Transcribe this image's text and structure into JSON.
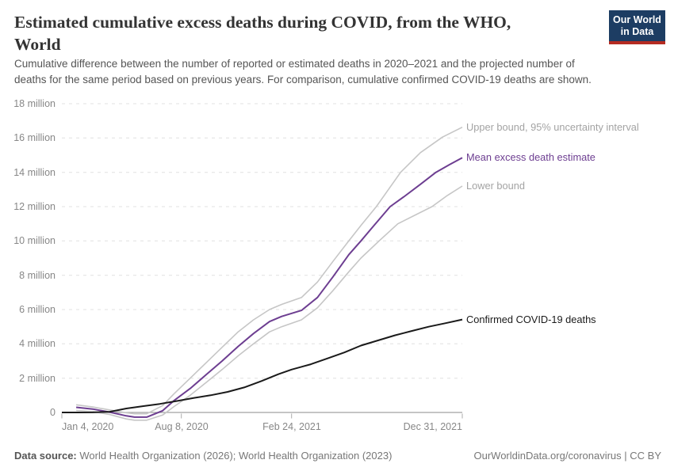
{
  "header": {
    "title_lines": [
      "Estimated cumulative excess deaths during COVID, from the WHO,",
      "World"
    ],
    "subtitle_lines": [
      "Cumulative difference between the number of reported or estimated deaths in 2020–2021 and the projected number of",
      "deaths for the same period based on previous years. For comparison, cumulative confirmed COVID-19 deaths are shown."
    ],
    "logo": {
      "line1": "Our World",
      "line2": "in Data"
    }
  },
  "footer": {
    "datasource_label": "Data source:",
    "datasource_text": " World Health Organization (2026); World Health Organization (2023)",
    "right_text": "OurWorldinData.org/coronavirus | CC BY"
  },
  "colors": {
    "mean": "#6d3e91",
    "bounds_line": "#c6c6c6",
    "bounds_label": "#a3a3a3",
    "confirmed": "#1a1a1a",
    "grid": "#e0e0e0",
    "zero_line": "#a2a2a2",
    "tick": "#ababab",
    "logo_bg": "#1d3d63",
    "logo_bar": "#b52b22"
  },
  "chart_data": {
    "type": "line",
    "title": "Estimated cumulative excess deaths during COVID, from the WHO, World",
    "x_unit": "days since 2020-01-04",
    "x_range_days": [
      0,
      727
    ],
    "ylim": [
      0,
      18
    ],
    "y_unit": "million deaths",
    "grid": "horizontal dashed",
    "legend_position": "labels at right end of each line",
    "y_ticks": [
      {
        "value": 0,
        "label": "0"
      },
      {
        "value": 2,
        "label": "2 million"
      },
      {
        "value": 4,
        "label": "4 million"
      },
      {
        "value": 6,
        "label": "6 million"
      },
      {
        "value": 8,
        "label": "8 million"
      },
      {
        "value": 10,
        "label": "10 million"
      },
      {
        "value": 12,
        "label": "12 million"
      },
      {
        "value": 14,
        "label": "14 million"
      },
      {
        "value": 16,
        "label": "16 million"
      },
      {
        "value": 18,
        "label": "18 million"
      }
    ],
    "x_ticks": [
      {
        "day": 0,
        "label": "Jan 4, 2020",
        "align": "left"
      },
      {
        "day": 217,
        "label": "Aug 8, 2020",
        "align": "center"
      },
      {
        "day": 417,
        "label": "Feb 24, 2021",
        "align": "center"
      },
      {
        "day": 727,
        "label": "Dec 31, 2021",
        "align": "right"
      }
    ],
    "series": [
      {
        "id": "upper",
        "name": "Upper bound, 95% uncertainty interval",
        "color": "#c6c6c6",
        "label_color": "#a3a3a3",
        "width": 1.6,
        "points": [
          [
            26,
            0.45
          ],
          [
            56,
            0.32
          ],
          [
            87,
            0.15
          ],
          [
            117,
            -0.02
          ],
          [
            132,
            -0.08
          ],
          [
            154,
            -0.08
          ],
          [
            183,
            0.4
          ],
          [
            204,
            1.1
          ],
          [
            233,
            2.0
          ],
          [
            262,
            2.9
          ],
          [
            291,
            3.8
          ],
          [
            320,
            4.7
          ],
          [
            348,
            5.4
          ],
          [
            377,
            6.0
          ],
          [
            399,
            6.3
          ],
          [
            435,
            6.7
          ],
          [
            464,
            7.6
          ],
          [
            492,
            8.8
          ],
          [
            521,
            10.0
          ],
          [
            543,
            10.9
          ],
          [
            571,
            12.0
          ],
          [
            615,
            14.0
          ],
          [
            651,
            15.15
          ],
          [
            691,
            16.05
          ],
          [
            727,
            16.63
          ]
        ]
      },
      {
        "id": "lower",
        "name": "Lower bound",
        "color": "#c6c6c6",
        "label_color": "#a3a3a3",
        "width": 1.6,
        "points": [
          [
            26,
            0.12
          ],
          [
            56,
            0.05
          ],
          [
            87,
            -0.12
          ],
          [
            117,
            -0.38
          ],
          [
            132,
            -0.45
          ],
          [
            154,
            -0.45
          ],
          [
            183,
            -0.15
          ],
          [
            204,
            0.35
          ],
          [
            233,
            1.0
          ],
          [
            262,
            1.75
          ],
          [
            291,
            2.5
          ],
          [
            320,
            3.3
          ],
          [
            348,
            4.0
          ],
          [
            377,
            4.7
          ],
          [
            399,
            5.0
          ],
          [
            435,
            5.4
          ],
          [
            464,
            6.1
          ],
          [
            492,
            7.1
          ],
          [
            521,
            8.2
          ],
          [
            543,
            9.0
          ],
          [
            576,
            10.0
          ],
          [
            610,
            11.0
          ],
          [
            672,
            12.0
          ],
          [
            700,
            12.65
          ],
          [
            727,
            13.2
          ]
        ]
      },
      {
        "id": "mean",
        "name": "Mean excess death estimate",
        "color": "#6d3e91",
        "label_color": "#6d3e91",
        "width": 2,
        "points": [
          [
            26,
            0.3
          ],
          [
            56,
            0.2
          ],
          [
            87,
            0.02
          ],
          [
            117,
            -0.2
          ],
          [
            132,
            -0.27
          ],
          [
            154,
            -0.27
          ],
          [
            183,
            0.1
          ],
          [
            204,
            0.7
          ],
          [
            233,
            1.4
          ],
          [
            262,
            2.2
          ],
          [
            291,
            3.0
          ],
          [
            320,
            3.85
          ],
          [
            348,
            4.6
          ],
          [
            377,
            5.3
          ],
          [
            399,
            5.6
          ],
          [
            435,
            5.95
          ],
          [
            464,
            6.7
          ],
          [
            492,
            7.9
          ],
          [
            521,
            9.2
          ],
          [
            543,
            10.0
          ],
          [
            564,
            10.8
          ],
          [
            596,
            12.0
          ],
          [
            622,
            12.6
          ],
          [
            651,
            13.3
          ],
          [
            679,
            14.0
          ],
          [
            704,
            14.45
          ],
          [
            727,
            14.85
          ]
        ]
      },
      {
        "id": "confirmed",
        "name": "Confirmed COVID-19 deaths",
        "color": "#1a1a1a",
        "label_color": "#1a1a1a",
        "width": 2,
        "points": [
          [
            0,
            0
          ],
          [
            27,
            0
          ],
          [
            56,
            0.003
          ],
          [
            87,
            0.04
          ],
          [
            117,
            0.23
          ],
          [
            148,
            0.37
          ],
          [
            178,
            0.5
          ],
          [
            209,
            0.67
          ],
          [
            240,
            0.85
          ],
          [
            270,
            1.0
          ],
          [
            301,
            1.2
          ],
          [
            331,
            1.46
          ],
          [
            362,
            1.83
          ],
          [
            393,
            2.23
          ],
          [
            417,
            2.5
          ],
          [
            452,
            2.81
          ],
          [
            482,
            3.15
          ],
          [
            513,
            3.5
          ],
          [
            543,
            3.9
          ],
          [
            574,
            4.2
          ],
          [
            605,
            4.5
          ],
          [
            635,
            4.75
          ],
          [
            666,
            5.0
          ],
          [
            696,
            5.2
          ],
          [
            727,
            5.42
          ]
        ]
      }
    ]
  }
}
